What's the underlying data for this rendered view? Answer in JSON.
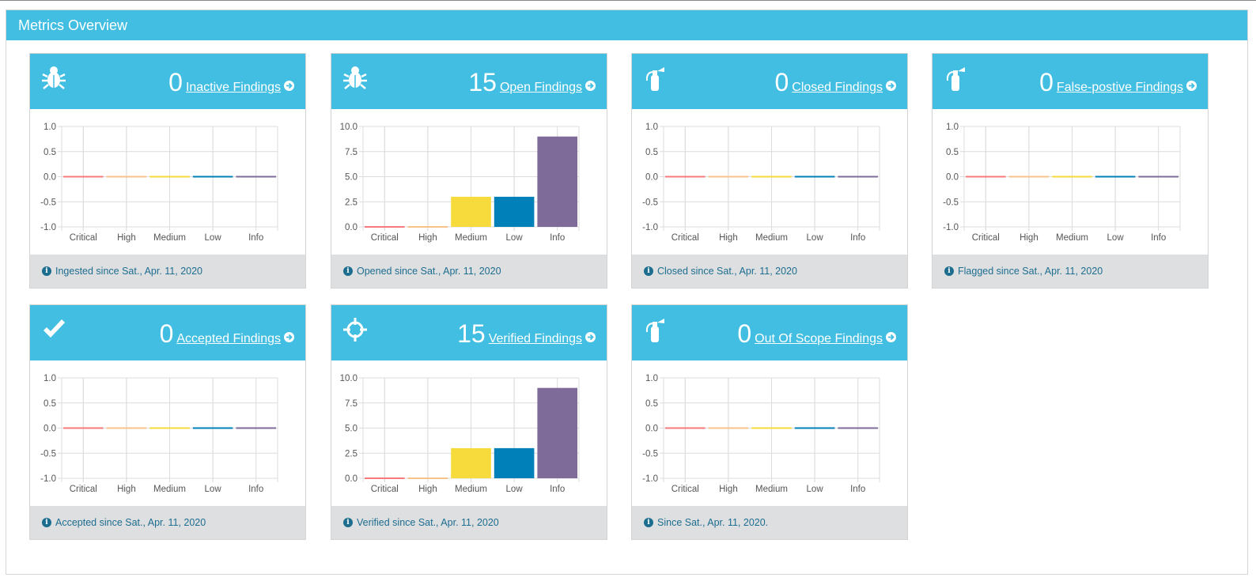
{
  "panel": {
    "title": "Metrics Overview"
  },
  "colors": {
    "header": "#41bee1",
    "critical": "#f7797b",
    "high": "#f8c38a",
    "medium": "#f7da3b",
    "low": "#0080b9",
    "info": "#7f6b99",
    "footer_bg": "#dedfe1",
    "footer_text": "#1d6d8f"
  },
  "cards": [
    {
      "icon": "bug-icon",
      "count": "0",
      "label": "Inactive Findings",
      "footer": "Ingested since Sat., Apr. 11, 2020",
      "chart_data": {
        "type": "bar",
        "categories": [
          "Critical",
          "High",
          "Medium",
          "Low",
          "Info"
        ],
        "values": [
          0,
          0,
          0,
          0,
          0
        ],
        "ylim": [
          -1.0,
          1.0
        ],
        "yticks": [
          "1.0",
          "0.5",
          "0.0",
          "-0.5",
          "-1.0"
        ]
      }
    },
    {
      "icon": "bug-icon",
      "count": "15",
      "label": "Open Findings",
      "footer": "Opened since Sat., Apr. 11, 2020",
      "chart_data": {
        "type": "bar",
        "categories": [
          "Critical",
          "High",
          "Medium",
          "Low",
          "Info"
        ],
        "values": [
          0,
          0,
          3,
          3,
          9
        ],
        "ylim": [
          0,
          10.0
        ],
        "yticks": [
          "10.0",
          "7.5",
          "5.0",
          "2.5",
          "0.0"
        ]
      }
    },
    {
      "icon": "fire-extinguisher-icon",
      "count": "0",
      "label": "Closed Findings",
      "footer": "Closed since Sat., Apr. 11, 2020",
      "chart_data": {
        "type": "bar",
        "categories": [
          "Critical",
          "High",
          "Medium",
          "Low",
          "Info"
        ],
        "values": [
          0,
          0,
          0,
          0,
          0
        ],
        "ylim": [
          -1.0,
          1.0
        ],
        "yticks": [
          "1.0",
          "0.5",
          "0.0",
          "-0.5",
          "-1.0"
        ]
      }
    },
    {
      "icon": "fire-extinguisher-icon",
      "count": "0",
      "label": "False-postive Findings",
      "footer": "Flagged since Sat., Apr. 11, 2020",
      "chart_data": {
        "type": "bar",
        "categories": [
          "Critical",
          "High",
          "Medium",
          "Low",
          "Info"
        ],
        "values": [
          0,
          0,
          0,
          0,
          0
        ],
        "ylim": [
          -1.0,
          1.0
        ],
        "yticks": [
          "1.0",
          "0.5",
          "0.0",
          "-0.5",
          "-1.0"
        ]
      }
    },
    {
      "icon": "check-icon",
      "count": "0",
      "label": "Accepted Findings",
      "footer": "Accepted since Sat., Apr. 11, 2020",
      "chart_data": {
        "type": "bar",
        "categories": [
          "Critical",
          "High",
          "Medium",
          "Low",
          "Info"
        ],
        "values": [
          0,
          0,
          0,
          0,
          0
        ],
        "ylim": [
          -1.0,
          1.0
        ],
        "yticks": [
          "1.0",
          "0.5",
          "0.0",
          "-0.5",
          "-1.0"
        ]
      }
    },
    {
      "icon": "crosshairs-icon",
      "count": "15",
      "label": "Verified Findings",
      "footer": "Verified since Sat., Apr. 11, 2020",
      "chart_data": {
        "type": "bar",
        "categories": [
          "Critical",
          "High",
          "Medium",
          "Low",
          "Info"
        ],
        "values": [
          0,
          0,
          3,
          3,
          9
        ],
        "ylim": [
          0,
          10.0
        ],
        "yticks": [
          "10.0",
          "7.5",
          "5.0",
          "2.5",
          "0.0"
        ]
      }
    },
    {
      "icon": "fire-extinguisher-icon",
      "count": "0",
      "label": "Out Of Scope Findings",
      "footer": "Since Sat., Apr. 11, 2020.",
      "chart_data": {
        "type": "bar",
        "categories": [
          "Critical",
          "High",
          "Medium",
          "Low",
          "Info"
        ],
        "values": [
          0,
          0,
          0,
          0,
          0
        ],
        "ylim": [
          -1.0,
          1.0
        ],
        "yticks": [
          "1.0",
          "0.5",
          "0.0",
          "-0.5",
          "-1.0"
        ]
      }
    }
  ]
}
